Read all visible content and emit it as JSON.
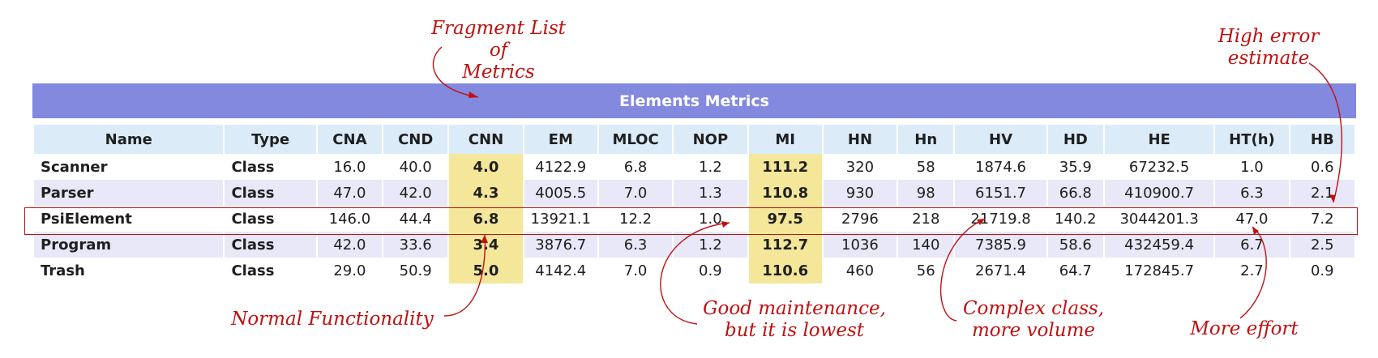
{
  "table": {
    "title": "Elements Metrics",
    "columns": [
      "Name",
      "Type",
      "CNA",
      "CND",
      "CNN",
      "EM",
      "MLOC",
      "NOP",
      "MI",
      "HN",
      "Hn",
      "HV",
      "HD",
      "HE",
      "HT(h)",
      "HB"
    ],
    "rows": [
      [
        "Scanner",
        "Class",
        "16.0",
        "40.0",
        "4.0",
        "4122.9",
        "6.8",
        "1.2",
        "111.2",
        "320",
        "58",
        "1874.6",
        "35.9",
        "67232.5",
        "1.0",
        "0.6"
      ],
      [
        "Parser",
        "Class",
        "47.0",
        "42.0",
        "4.3",
        "4005.5",
        "7.0",
        "1.3",
        "110.8",
        "930",
        "98",
        "6151.7",
        "66.8",
        "410900.7",
        "6.3",
        "2.1"
      ],
      [
        "PsiElement",
        "Class",
        "146.0",
        "44.4",
        "6.8",
        "13921.1",
        "12.2",
        "1.0",
        "97.5",
        "2796",
        "218",
        "21719.8",
        "140.2",
        "3044201.3",
        "47.0",
        "7.2"
      ],
      [
        "Program",
        "Class",
        "42.0",
        "33.6",
        "3.4",
        "3876.7",
        "6.3",
        "1.2",
        "112.7",
        "1036",
        "140",
        "7385.9",
        "58.6",
        "432459.4",
        "6.7",
        "2.5"
      ],
      [
        "Trash",
        "Class",
        "29.0",
        "50.9",
        "5.0",
        "4142.4",
        "7.0",
        "0.9",
        "110.6",
        "460",
        "56",
        "2671.4",
        "64.7",
        "172845.7",
        "2.7",
        "0.9"
      ]
    ]
  },
  "annotations": {
    "fragment_list": "Fragment List of\nMetrics",
    "high_error": "High error\nestimate",
    "normal_functionality": "Normal Functionality",
    "good_maintenance": "Good maintenance,\nbut it is lowest",
    "complex_class": "Complex class,\nmore volume",
    "more_effort": "More effort"
  },
  "colors": {
    "title_bar": "#8389df",
    "header_bg": "#dcebf8",
    "highlight": "#f5e79a",
    "annotation": "#c01010"
  }
}
